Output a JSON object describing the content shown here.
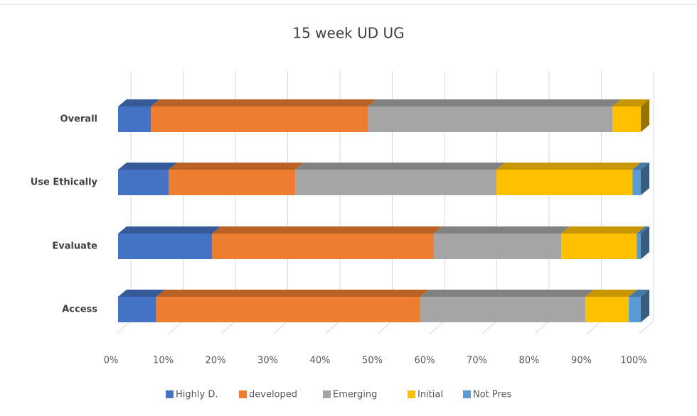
{
  "chart_data": {
    "type": "bar",
    "orientation": "horizontal",
    "stacked": "percent",
    "title": "15 week UD UG",
    "categories": [
      "Overall",
      "Use Ethically",
      "Evaluate",
      "Access"
    ],
    "series": [
      {
        "name": "Highly D.",
        "color": "#4472c4",
        "values": [
          6.3,
          9.7,
          18.0,
          7.3
        ]
      },
      {
        "name": "developed",
        "color": "#ed7d31",
        "values": [
          41.5,
          24.2,
          42.4,
          50.5
        ]
      },
      {
        "name": "Emerging",
        "color": "#a5a5a5",
        "values": [
          46.8,
          38.5,
          24.4,
          31.6
        ]
      },
      {
        "name": "Initial",
        "color": "#ffc000",
        "values": [
          5.4,
          26.0,
          14.4,
          8.3
        ]
      },
      {
        "name": "Not Pres",
        "color": "#5b9bd5",
        "values": [
          0,
          1.6,
          0.8,
          2.3
        ]
      }
    ],
    "xlim": [
      0,
      100
    ],
    "xticks": [
      {
        "value": 0,
        "label": "0%"
      },
      {
        "value": 10,
        "label": "10%"
      },
      {
        "value": 20,
        "label": "20%"
      },
      {
        "value": 30,
        "label": "30%"
      },
      {
        "value": 40,
        "label": "40%"
      },
      {
        "value": 50,
        "label": "50%"
      },
      {
        "value": 60,
        "label": "60%"
      },
      {
        "value": 70,
        "label": "70%"
      },
      {
        "value": 80,
        "label": "80%"
      },
      {
        "value": 90,
        "label": "90%"
      },
      {
        "value": 100,
        "label": "100%"
      }
    ],
    "grid": true,
    "legend": "bottom"
  }
}
